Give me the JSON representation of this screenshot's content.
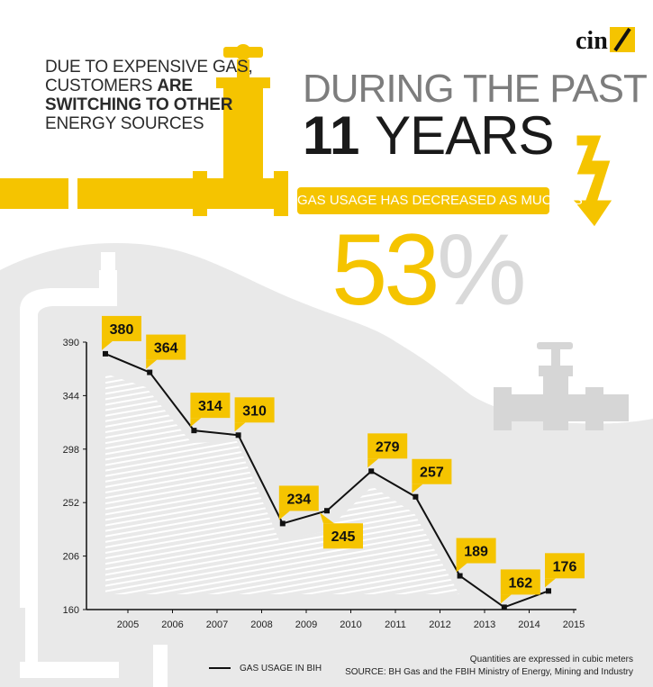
{
  "header": {
    "line1": "DUE TO EXPENSIVE GAS,",
    "line2_a": "CUSTOMERS ",
    "line2_b": "ARE",
    "line3": "SWITCHING TO OTHER",
    "line4": "ENERGY SOURCES"
  },
  "hero": {
    "during": "DURING THE PAST",
    "years_number": "11",
    "years_word": "YEARS",
    "ribbon": "GAS USAGE HAS DECREASED AS MUCH AS",
    "percent_number": "53",
    "percent_sign": "%"
  },
  "logo": {
    "text": "cin"
  },
  "colors": {
    "accent": "#f5c400",
    "dark": "#111111",
    "bg_gray": "#e8e8e8",
    "pipe_gray": "#d6d6d6"
  },
  "footer": {
    "note_line1": "Quantities are expressed in cubic meters",
    "note_line2": "SOURCE: BH Gas and the FBIH Ministry of Energy, Mining and Industry",
    "legend_label": "GAS USAGE IN BIH"
  },
  "chart_data": {
    "type": "line",
    "title": "GAS USAGE IN BIH",
    "x": [
      "2005",
      "2006",
      "2007",
      "2008",
      "2009",
      "2010",
      "2011",
      "2012",
      "2013",
      "2014",
      "2015"
    ],
    "series": [
      {
        "name": "GAS USAGE IN BIH",
        "values": [
          380,
          364,
          314,
          310,
          234,
          245,
          279,
          257,
          189,
          162,
          176
        ]
      }
    ],
    "x_tick_labels": [
      "2005",
      "2006",
      "2007",
      "2008",
      "2009",
      "2010",
      "2011",
      "2012",
      "2013",
      "2014",
      "2015"
    ],
    "y_ticks": [
      160,
      206,
      252,
      298,
      344,
      390
    ],
    "ylim": [
      160,
      390
    ],
    "data_labels": [
      "380",
      "364",
      "314",
      "310",
      "234",
      "245",
      "279",
      "257",
      "189",
      "162",
      "176"
    ],
    "legend": "bottom-left",
    "grid": false
  }
}
